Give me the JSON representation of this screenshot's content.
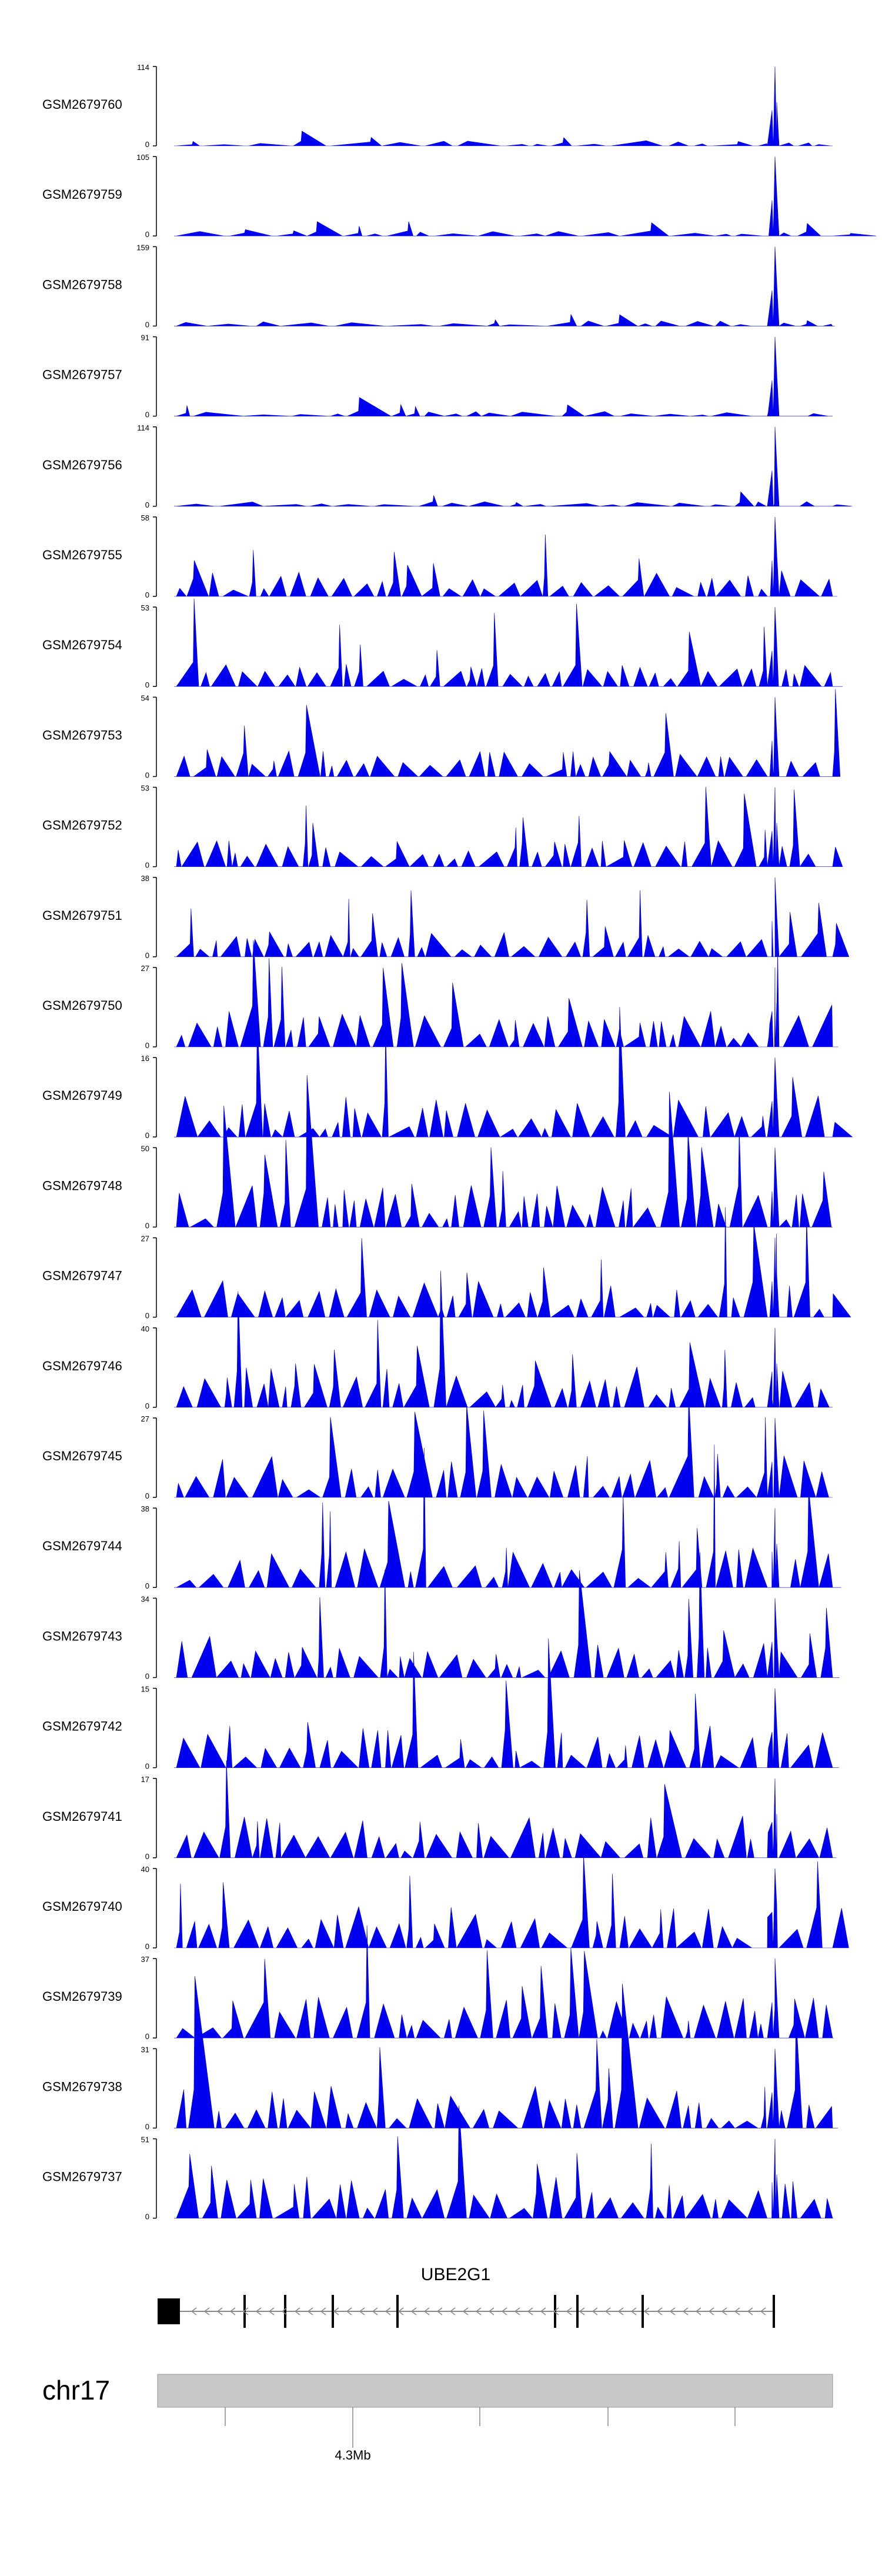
{
  "chart_data": {
    "type": "area",
    "title": "",
    "xlabel": "",
    "ylabel": "",
    "tracks": [
      {
        "name": "GSM2679760",
        "ymax": "114",
        "ymin": "0"
      },
      {
        "name": "GSM2679759",
        "ymax": "105",
        "ymin": "0"
      },
      {
        "name": "GSM2679758",
        "ymax": "159",
        "ymin": "0"
      },
      {
        "name": "GSM2679757",
        "ymax": "91",
        "ymin": "0"
      },
      {
        "name": "GSM2679756",
        "ymax": "114",
        "ymin": "0"
      },
      {
        "name": "GSM2679755",
        "ymax": "58",
        "ymin": "0"
      },
      {
        "name": "GSM2679754",
        "ymax": "53",
        "ymin": "0"
      },
      {
        "name": "GSM2679753",
        "ymax": "54",
        "ymin": "0"
      },
      {
        "name": "GSM2679752",
        "ymax": "53",
        "ymin": "0"
      },
      {
        "name": "GSM2679751",
        "ymax": "38",
        "ymin": "0"
      },
      {
        "name": "GSM2679750",
        "ymax": "27",
        "ymin": "0"
      },
      {
        "name": "GSM2679749",
        "ymax": "16",
        "ymin": "0"
      },
      {
        "name": "GSM2679748",
        "ymax": "50",
        "ymin": "0"
      },
      {
        "name": "GSM2679747",
        "ymax": "27",
        "ymin": "0"
      },
      {
        "name": "GSM2679746",
        "ymax": "40",
        "ymin": "0"
      },
      {
        "name": "GSM2679745",
        "ymax": "27",
        "ymin": "0"
      },
      {
        "name": "GSM2679744",
        "ymax": "38",
        "ymin": "0"
      },
      {
        "name": "GSM2679743",
        "ymax": "34",
        "ymin": "0"
      },
      {
        "name": "GSM2679742",
        "ymax": "15",
        "ymin": "0"
      },
      {
        "name": "GSM2679741",
        "ymax": "17",
        "ymin": "0"
      },
      {
        "name": "GSM2679740",
        "ymax": "40",
        "ymin": "0"
      },
      {
        "name": "GSM2679739",
        "ymax": "37",
        "ymin": "0"
      },
      {
        "name": "GSM2679738",
        "ymax": "31",
        "ymin": "0"
      },
      {
        "name": "GSM2679737",
        "ymax": "51",
        "ymin": "0"
      }
    ],
    "gene": {
      "name": "UBE2G1",
      "strand": "-"
    },
    "chromosome": {
      "name": "chr17",
      "tick_label": "4.3Mb"
    },
    "colors": {
      "signal": "#0000ee",
      "ideogram": "#c8c8c8",
      "axis": "#000000"
    }
  }
}
